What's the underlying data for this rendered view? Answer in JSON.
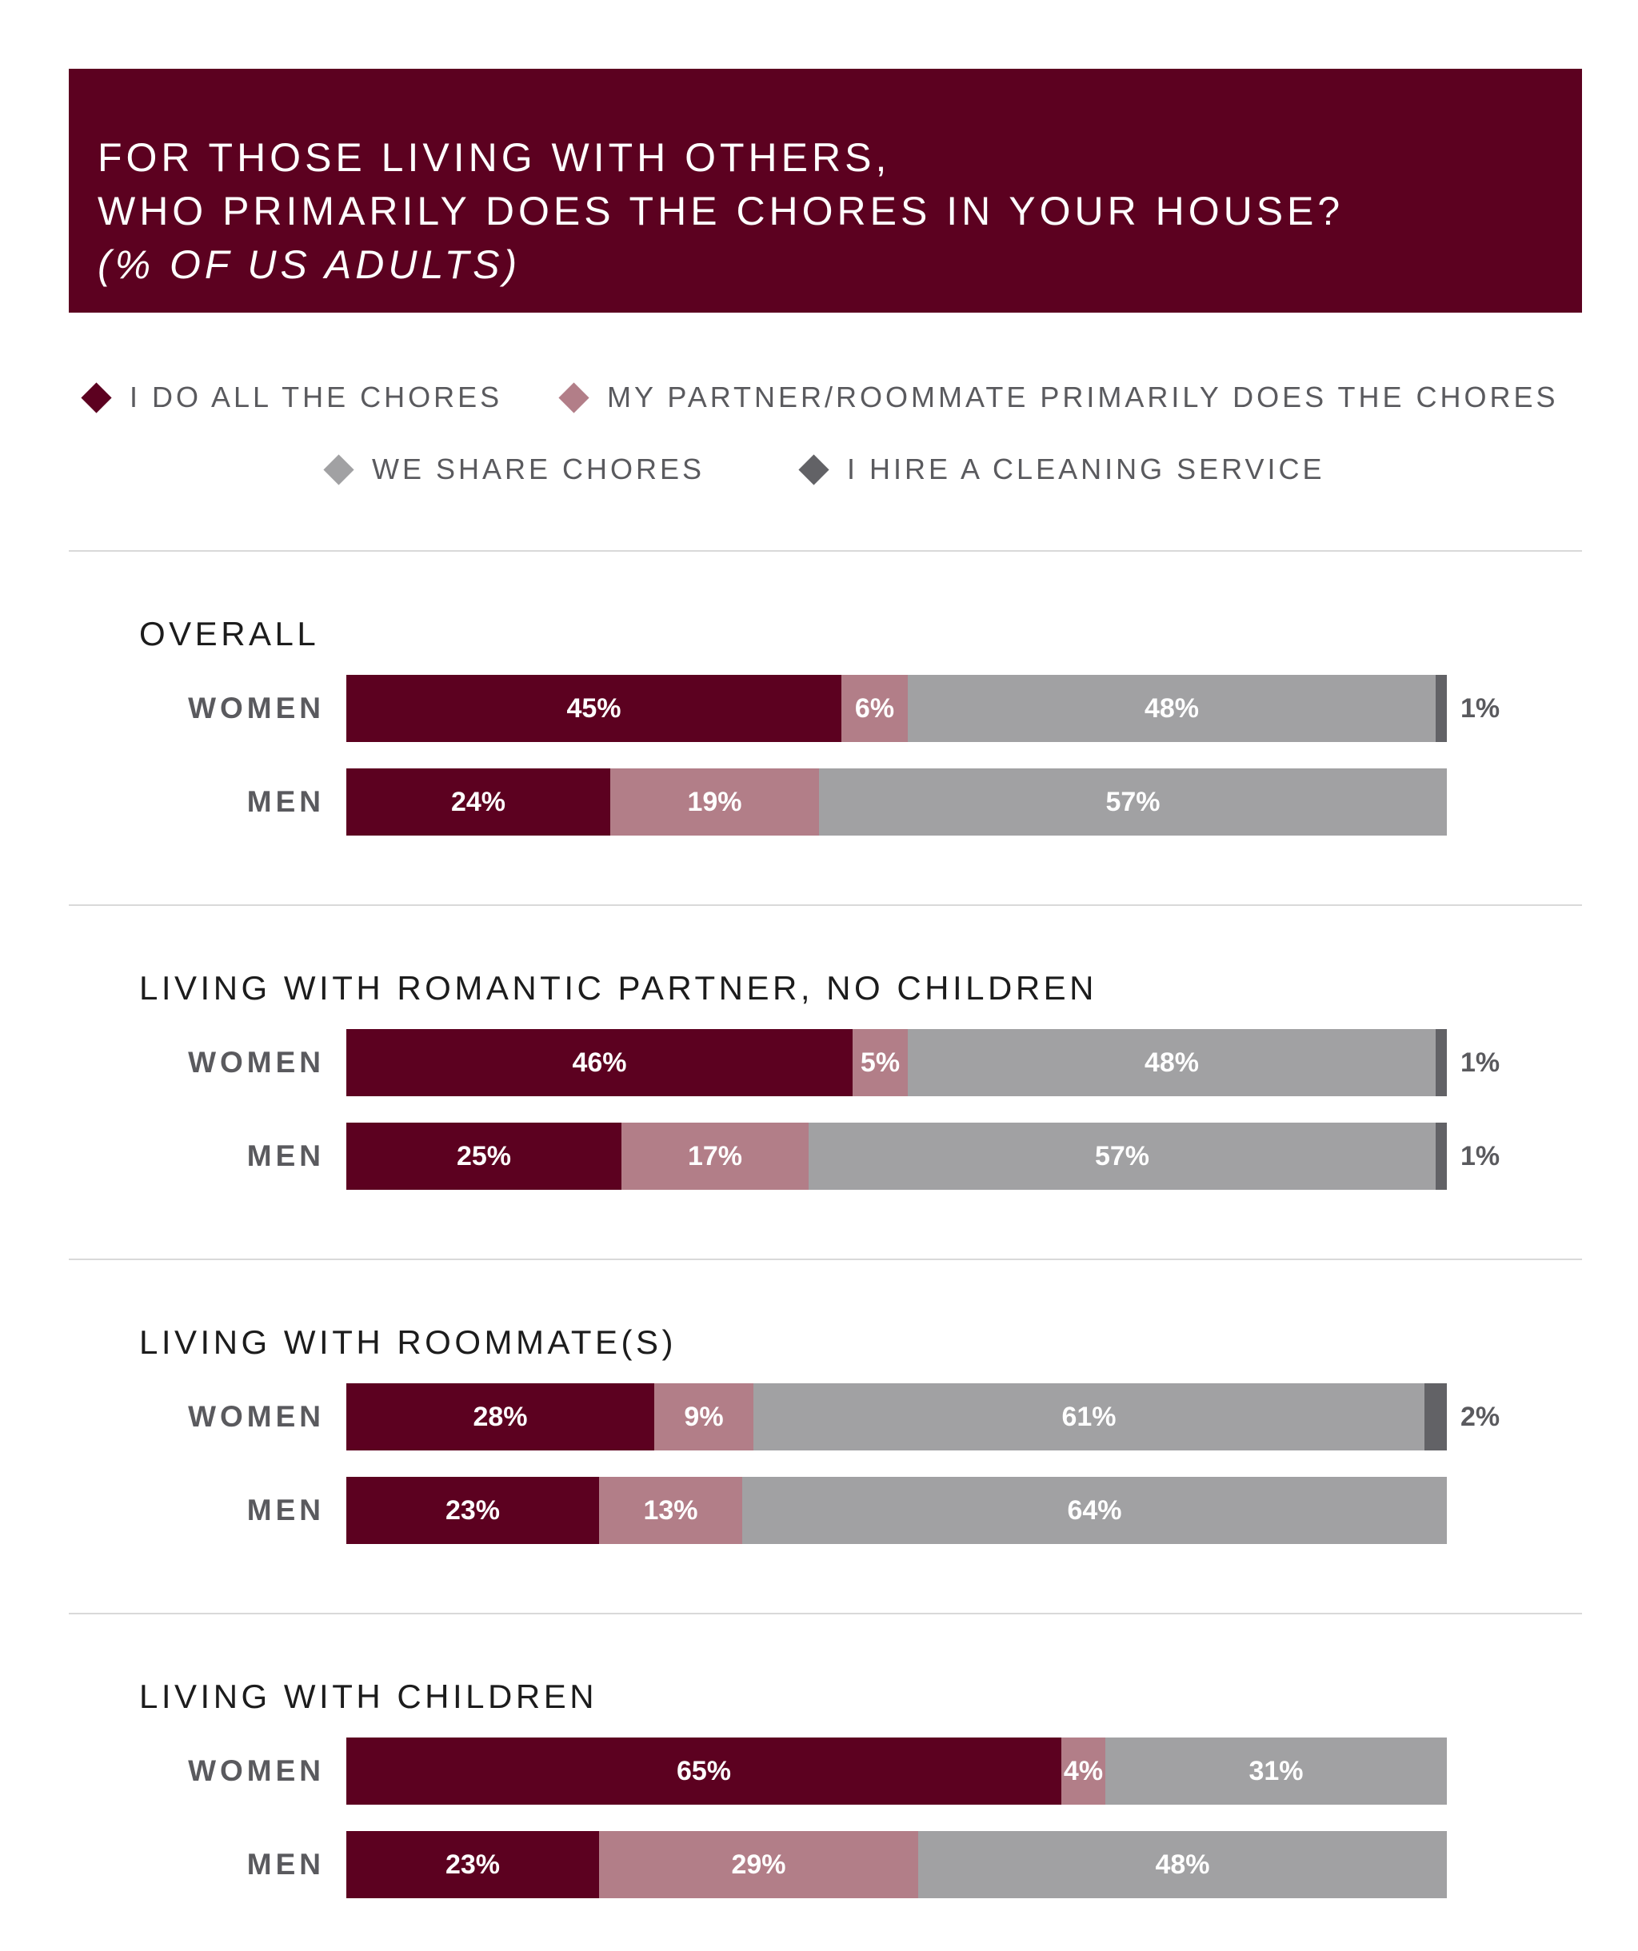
{
  "title": {
    "line1": "FOR THOSE LIVING WITH OTHERS,",
    "line2": "WHO PRIMARILY DOES THE CHORES IN YOUR HOUSE?",
    "line3": "(% OF US ADULTS)"
  },
  "colors": {
    "header_bg": "#5c0120",
    "self": "#5c0120",
    "partner": "#b27e88",
    "share": "#a1a1a3",
    "service": "#626266"
  },
  "chart_data": {
    "type": "bar",
    "orientation": "horizontal",
    "stacked": true,
    "normalized_to": 100,
    "unit": "%",
    "legend": [
      {
        "key": "self",
        "label": "I DO ALL THE CHORES",
        "icon": "diamond-icon"
      },
      {
        "key": "partner",
        "label": "MY PARTNER/ROOMMATE PRIMARILY DOES THE CHORES",
        "icon": "diamond-icon"
      },
      {
        "key": "share",
        "label": "WE SHARE CHORES",
        "icon": "diamond-icon"
      },
      {
        "key": "service",
        "label": "I HIRE A CLEANING SERVICE",
        "icon": "diamond-icon"
      }
    ],
    "groups": [
      {
        "title": "OVERALL",
        "rows": [
          {
            "label": "WOMEN",
            "values": {
              "self": 45,
              "partner": 6,
              "share": 48,
              "service": 1
            }
          },
          {
            "label": "MEN",
            "values": {
              "self": 24,
              "partner": 19,
              "share": 57,
              "service": 0
            }
          }
        ]
      },
      {
        "title": "LIVING WITH ROMANTIC PARTNER, NO CHILDREN",
        "rows": [
          {
            "label": "WOMEN",
            "values": {
              "self": 46,
              "partner": 5,
              "share": 48,
              "service": 1
            }
          },
          {
            "label": "MEN",
            "values": {
              "self": 25,
              "partner": 17,
              "share": 57,
              "service": 1
            }
          }
        ]
      },
      {
        "title": "LIVING WITH ROOMMATE(S)",
        "rows": [
          {
            "label": "WOMEN",
            "values": {
              "self": 28,
              "partner": 9,
              "share": 61,
              "service": 2
            }
          },
          {
            "label": "MEN",
            "values": {
              "self": 23,
              "partner": 13,
              "share": 64,
              "service": 0
            }
          }
        ]
      },
      {
        "title": "LIVING WITH CHILDREN",
        "rows": [
          {
            "label": "WOMEN",
            "values": {
              "self": 65,
              "partner": 4,
              "share": 31,
              "service": 0
            }
          },
          {
            "label": "MEN",
            "values": {
              "self": 23,
              "partner": 29,
              "share": 48,
              "service": 0
            }
          }
        ]
      }
    ]
  }
}
